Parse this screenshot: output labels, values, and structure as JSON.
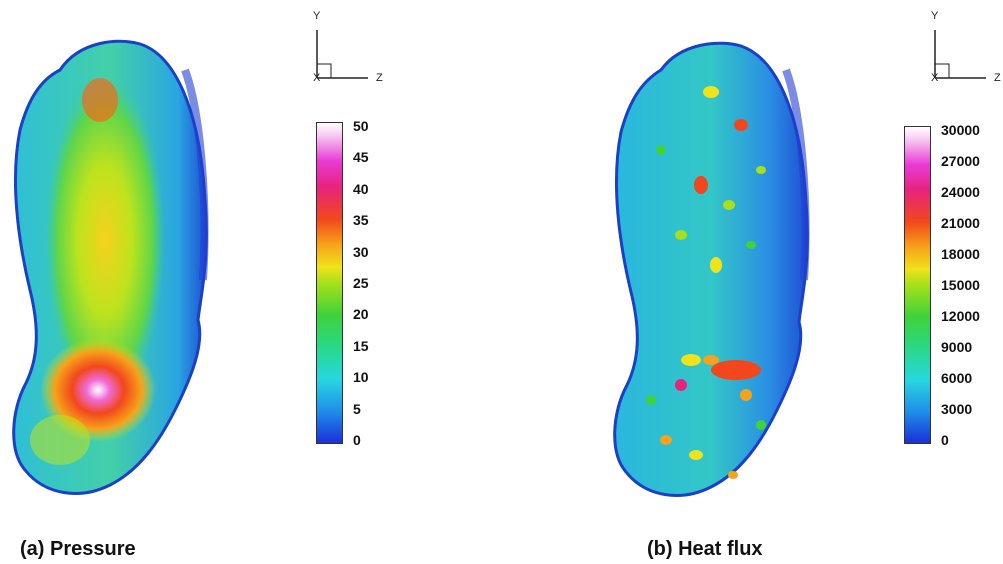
{
  "panels": [
    {
      "caption": "(a) Pressure",
      "axes": {
        "y": "Y",
        "x": "X",
        "z": "Z"
      },
      "colorbar": {
        "ticks": [
          "50",
          "45",
          "40",
          "35",
          "30",
          "25",
          "20",
          "15",
          "10",
          "5",
          "0"
        ],
        "min": 0,
        "max": 50
      }
    },
    {
      "caption": "(b) Heat flux",
      "axes": {
        "y": "Y",
        "x": "X",
        "z": "Z"
      },
      "colorbar": {
        "ticks": [
          "30000",
          "27000",
          "24000",
          "21000",
          "18000",
          "15000",
          "12000",
          "9000",
          "6000",
          "3000",
          "0"
        ],
        "min": 0,
        "max": 30000
      }
    }
  ],
  "colors": {
    "scale": [
      "#1b2fd9",
      "#1e8fe8",
      "#27d7e0",
      "#29d887",
      "#3fd23a",
      "#a7e01a",
      "#f0e21b",
      "#f7a21a",
      "#f2471c",
      "#e8237d",
      "#e93ad5",
      "#f7c8f2",
      "#ffffff"
    ]
  }
}
